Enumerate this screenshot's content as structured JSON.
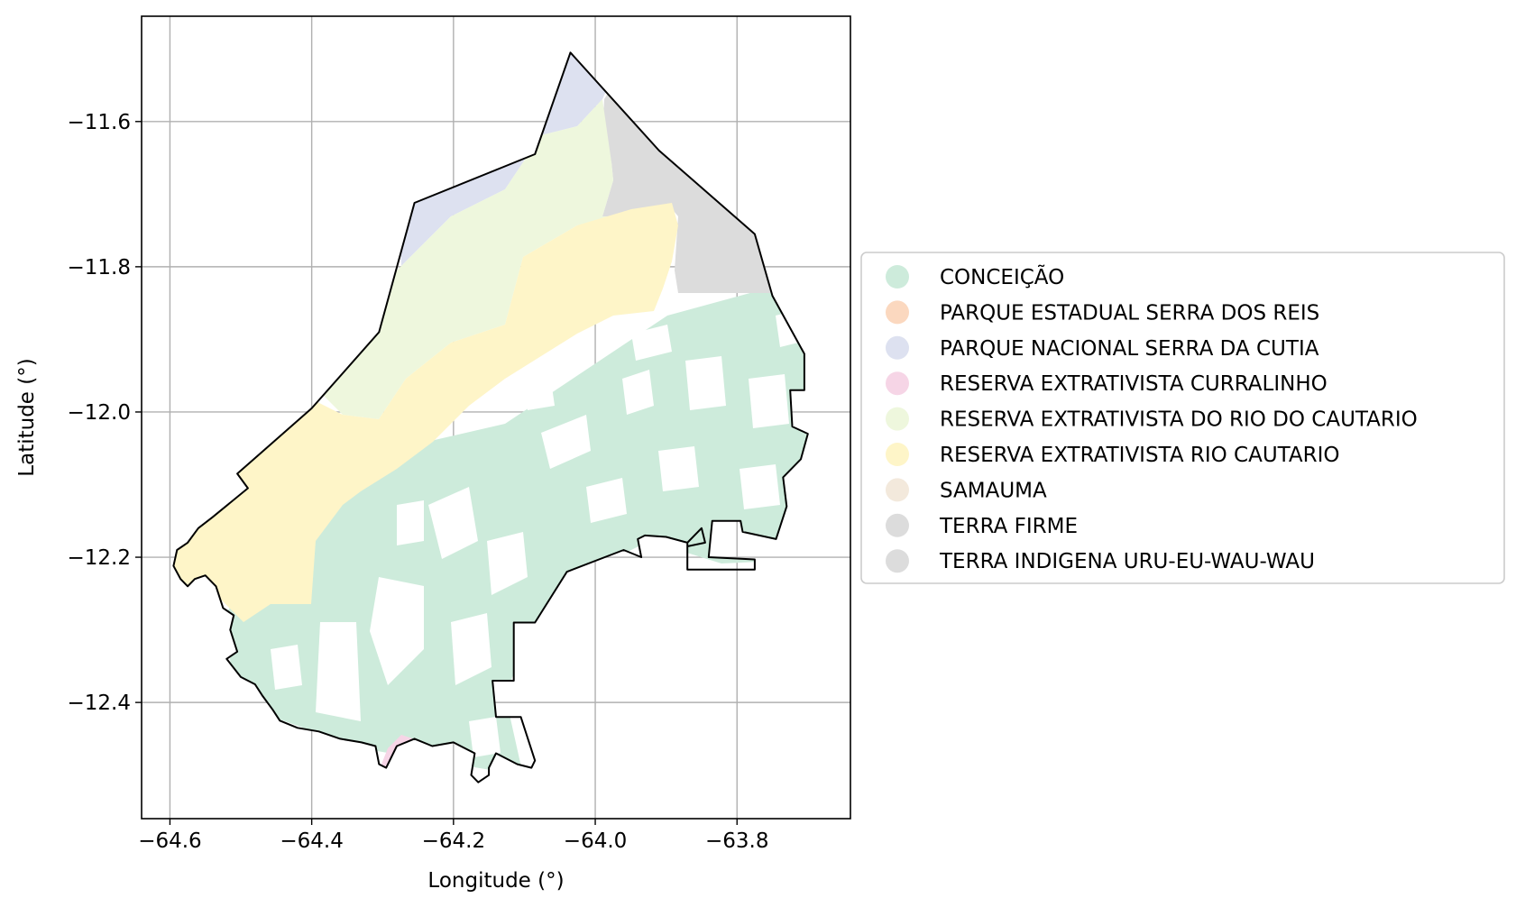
{
  "map": {
    "xlabel": "Longitude (°)",
    "ylabel": "Latitude (°)",
    "xlim": [
      -64.64,
      -63.64
    ],
    "ylim": [
      -12.56,
      -11.455
    ],
    "xticks": [
      -64.6,
      -64.4,
      -64.2,
      -64.0,
      -63.8
    ],
    "yticks": [
      -11.6,
      -11.8,
      -12.0,
      -12.2,
      -12.4
    ],
    "grid": true,
    "legend_position": "right",
    "legend": [
      {
        "label": "CONCEIÇÃO",
        "color": "#cdebdb"
      },
      {
        "label": "PARQUE ESTADUAL SERRA DOS REIS",
        "color": "#fbd8bf"
      },
      {
        "label": "PARQUE NACIONAL SERRA DA CUTIA",
        "color": "#dde1f0"
      },
      {
        "label": "RESERVA EXTRATIVISTA CURRALINHO",
        "color": "#f6d5e6"
      },
      {
        "label": "RESERVA EXTRATIVISTA DO RIO DO CAUTARIO",
        "color": "#eef7dd"
      },
      {
        "label": "RESERVA EXTRATIVISTA RIO CAUTARIO",
        "color": "#fef5c8"
      },
      {
        "label": "SAMAUMA",
        "color": "#f3e9dc"
      },
      {
        "label": "TERRA FIRME",
        "color": "#dcdcdc"
      },
      {
        "label": "TERRA INDIGENA URU-EU-WAU-WAU",
        "color": "#dcdcdc"
      }
    ]
  }
}
